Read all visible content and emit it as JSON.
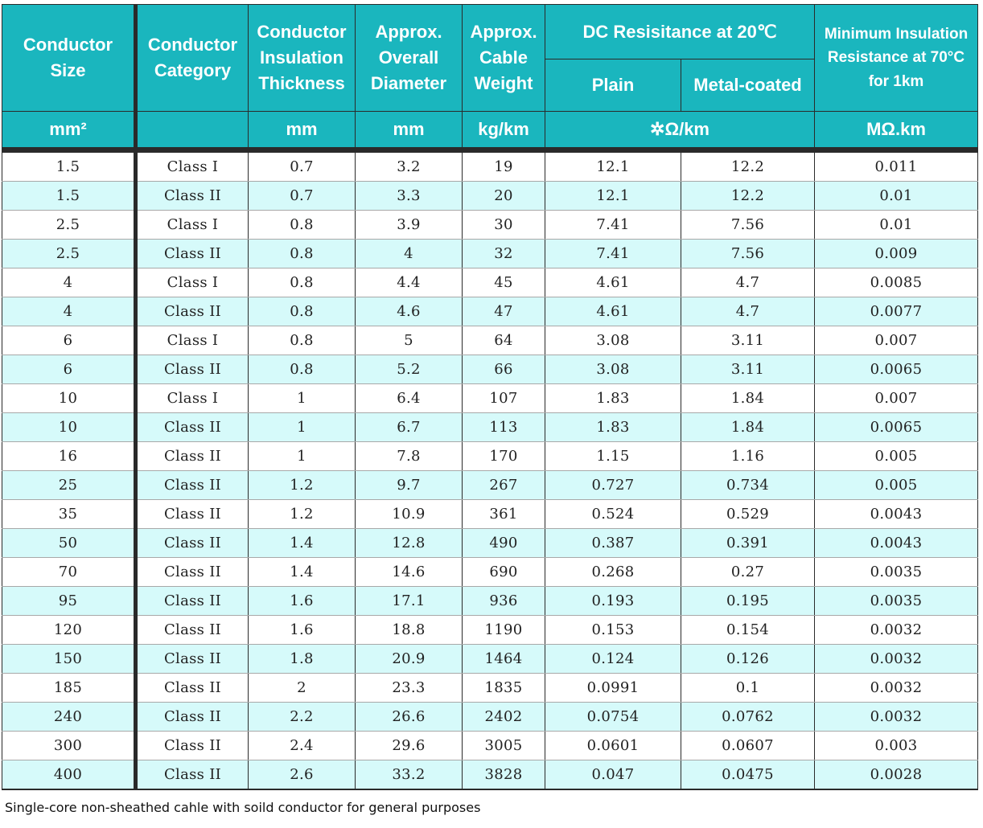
{
  "header": {
    "conductor_size": "Conductor Size",
    "conductor_category": "Conductor Category",
    "insulation_thickness": "Conductor Insulation Thickness",
    "overall_diameter": "Approx. Overall Diameter",
    "cable_weight": "Approx. Cable Weight",
    "dc_resistance": "DC Resisitance at 20℃",
    "plain": "Plain",
    "metal_coated": "Metal-coated",
    "min_insulation": "Minimum Insulation Resistance at 70°C for 1km"
  },
  "units": {
    "conductor_size": "mm²",
    "conductor_category": "",
    "insulation_thickness": "mm",
    "overall_diameter": "mm",
    "cable_weight": "kg/km",
    "dc_resistance": "✲Ω/km",
    "min_insulation": "MΩ.km"
  },
  "rows": [
    [
      "1.5",
      "Class I",
      "0.7",
      "3.2",
      "19",
      "12.1",
      "12.2",
      "0.011"
    ],
    [
      "1.5",
      "Class II",
      "0.7",
      "3.3",
      "20",
      "12.1",
      "12.2",
      "0.01"
    ],
    [
      "2.5",
      "Class I",
      "0.8",
      "3.9",
      "30",
      "7.41",
      "7.56",
      "0.01"
    ],
    [
      "2.5",
      "Class II",
      "0.8",
      "4",
      "32",
      "7.41",
      "7.56",
      "0.009"
    ],
    [
      "4",
      "Class I",
      "0.8",
      "4.4",
      "45",
      "4.61",
      "4.7",
      "0.0085"
    ],
    [
      "4",
      "Class II",
      "0.8",
      "4.6",
      "47",
      "4.61",
      "4.7",
      "0.0077"
    ],
    [
      "6",
      "Class I",
      "0.8",
      "5",
      "64",
      "3.08",
      "3.11",
      "0.007"
    ],
    [
      "6",
      "Class II",
      "0.8",
      "5.2",
      "66",
      "3.08",
      "3.11",
      "0.0065"
    ],
    [
      "10",
      "Class I",
      "1",
      "6.4",
      "107",
      "1.83",
      "1.84",
      "0.007"
    ],
    [
      "10",
      "Class II",
      "1",
      "6.7",
      "113",
      "1.83",
      "1.84",
      "0.0065"
    ],
    [
      "16",
      "Class II",
      "1",
      "7.8",
      "170",
      "1.15",
      "1.16",
      "0.005"
    ],
    [
      "25",
      "Class II",
      "1.2",
      "9.7",
      "267",
      "0.727",
      "0.734",
      "0.005"
    ],
    [
      "35",
      "Class II",
      "1.2",
      "10.9",
      "361",
      "0.524",
      "0.529",
      "0.0043"
    ],
    [
      "50",
      "Class II",
      "1.4",
      "12.8",
      "490",
      "0.387",
      "0.391",
      "0.0043"
    ],
    [
      "70",
      "Class II",
      "1.4",
      "14.6",
      "690",
      "0.268",
      "0.27",
      "0.0035"
    ],
    [
      "95",
      "Class II",
      "1.6",
      "17.1",
      "936",
      "0.193",
      "0.195",
      "0.0035"
    ],
    [
      "120",
      "Class II",
      "1.6",
      "18.8",
      "1190",
      "0.153",
      "0.154",
      "0.0032"
    ],
    [
      "150",
      "Class II",
      "1.8",
      "20.9",
      "1464",
      "0.124",
      "0.126",
      "0.0032"
    ],
    [
      "185",
      "Class II",
      "2",
      "23.3",
      "1835",
      "0.0991",
      "0.1",
      "0.0032"
    ],
    [
      "240",
      "Class II",
      "2.2",
      "26.6",
      "2402",
      "0.0754",
      "0.0762",
      "0.0032"
    ],
    [
      "300",
      "Class II",
      "2.4",
      "29.6",
      "3005",
      "0.0601",
      "0.0607",
      "0.003"
    ],
    [
      "400",
      "Class II",
      "2.6",
      "33.2",
      "3828",
      "0.047",
      "0.0475",
      "0.0028"
    ]
  ],
  "caption": "Single-core non-sheathed cahle with soild conductor for general purposes",
  "colors": {
    "header_bg": "#1ab6be",
    "header_text": "#ffffff",
    "row_alt_bg": "#d6fafa",
    "row_bg": "#ffffff",
    "border": "#2a2a2a"
  }
}
